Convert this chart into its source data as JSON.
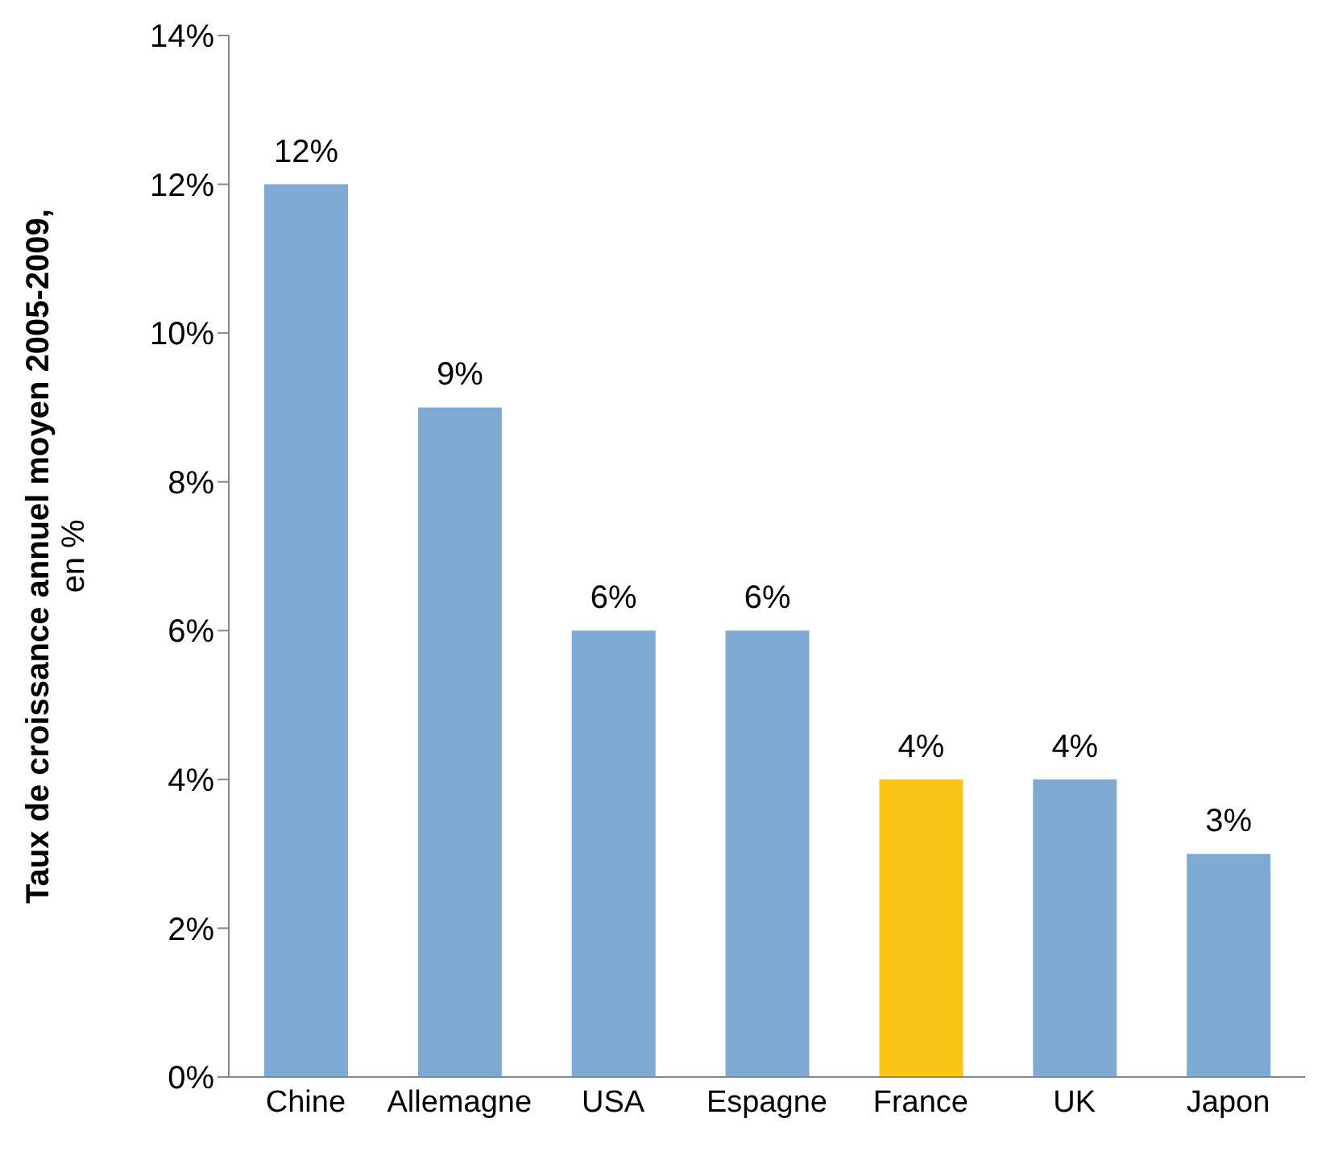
{
  "chart_data": {
    "type": "bar",
    "ylabel": "Taux de croissance annuel moyen 2005-2009, en %",
    "categories": [
      "Chine",
      "Allemagne",
      "USA",
      "Espagne",
      "France",
      "UK",
      "Japon"
    ],
    "values": [
      12,
      9,
      6,
      6,
      4,
      4,
      3
    ],
    "colors": [
      "#7eaad3",
      "#7eaad3",
      "#7eaad3",
      "#7eaad3",
      "#fbc518",
      "#7eaad3",
      "#7eaad3"
    ],
    "value_labels": [
      "12%",
      "9%",
      "6%",
      "6%",
      "4%",
      "4%",
      "3%"
    ],
    "ylim": [
      0,
      14
    ],
    "yticks": [
      {
        "value": 0,
        "label": "0%"
      },
      {
        "value": 2,
        "label": "2%"
      },
      {
        "value": 4,
        "label": "4%"
      },
      {
        "value": 6,
        "label": "6%"
      },
      {
        "value": 8,
        "label": "8%"
      },
      {
        "value": 10,
        "label": "10%"
      },
      {
        "value": 12,
        "label": "12%"
      },
      {
        "value": 14,
        "label": "14%"
      }
    ],
    "grid": false,
    "legend": false
  }
}
